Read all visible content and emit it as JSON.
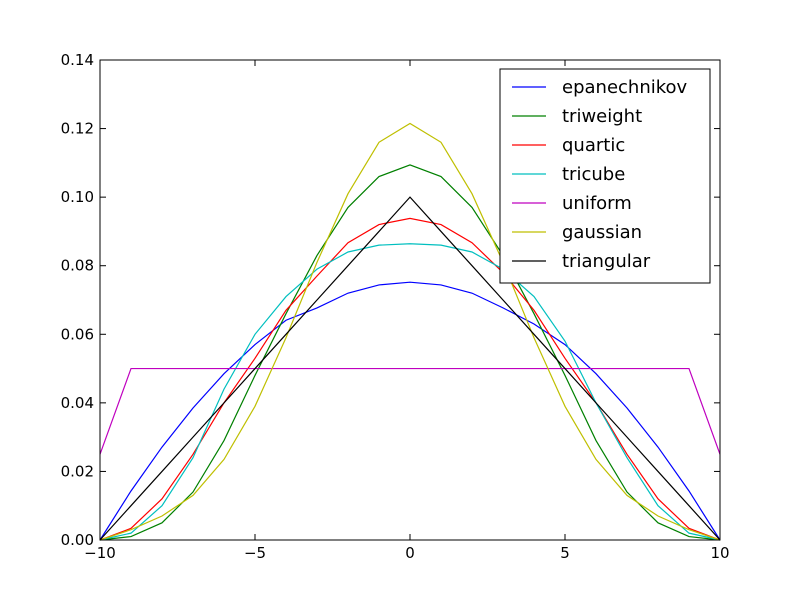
{
  "chart_data": {
    "type": "line",
    "title": "",
    "xlabel": "",
    "ylabel": "",
    "xlim": [
      -10,
      10
    ],
    "ylim": [
      0,
      0.14
    ],
    "x_ticks": [
      -10,
      -5,
      0,
      5,
      10
    ],
    "x_tick_labels": [
      "−10",
      "−5",
      "0",
      "5",
      "10"
    ],
    "y_ticks": [
      0,
      0.02,
      0.04,
      0.06,
      0.08,
      0.1,
      0.12,
      0.14
    ],
    "y_tick_labels": [
      "0.00",
      "0.02",
      "0.04",
      "0.06",
      "0.08",
      "0.10",
      "0.12",
      "0.14"
    ],
    "grid": false,
    "legend_position": "top-right",
    "x": [
      -10,
      -9,
      -8,
      -7,
      -6,
      -5,
      -4,
      -3,
      -2,
      -1,
      0,
      1,
      2,
      3,
      4,
      5,
      6,
      7,
      8,
      9,
      10
    ],
    "series": [
      {
        "name": "epanechnikov",
        "color": "#0000ff",
        "values": [
          0.0,
          0.0143,
          0.0271,
          0.0385,
          0.0485,
          0.057,
          0.0641,
          0.0677,
          0.072,
          0.0744,
          0.0752,
          0.0744,
          0.072,
          0.0677,
          0.063,
          0.057,
          0.0485,
          0.0385,
          0.0271,
          0.0143,
          0.0
        ]
      },
      {
        "name": "triweight",
        "color": "#008000",
        "values": [
          0.0,
          0.001,
          0.005,
          0.014,
          0.029,
          0.048,
          0.066,
          0.083,
          0.097,
          0.106,
          0.1094,
          0.106,
          0.097,
          0.083,
          0.066,
          0.048,
          0.029,
          0.014,
          0.005,
          0.001,
          0.0
        ]
      },
      {
        "name": "quartic",
        "color": "#ff0000",
        "values": [
          0.0,
          0.0034,
          0.012,
          0.025,
          0.04,
          0.053,
          0.067,
          0.077,
          0.0867,
          0.092,
          0.0938,
          0.092,
          0.0867,
          0.078,
          0.067,
          0.053,
          0.04,
          0.025,
          0.012,
          0.0034,
          0.0
        ]
      },
      {
        "name": "tricube",
        "color": "#00bfbf",
        "values": [
          0.0,
          0.002,
          0.01,
          0.024,
          0.044,
          0.06,
          0.071,
          0.079,
          0.084,
          0.086,
          0.0864,
          0.086,
          0.084,
          0.079,
          0.071,
          0.058,
          0.04,
          0.024,
          0.01,
          0.002,
          0.0
        ]
      },
      {
        "name": "uniform",
        "color": "#bf00bf",
        "values": [
          0.025,
          0.05,
          0.05,
          0.05,
          0.05,
          0.05,
          0.05,
          0.05,
          0.05,
          0.05,
          0.05,
          0.05,
          0.05,
          0.05,
          0.05,
          0.05,
          0.05,
          0.05,
          0.05,
          0.05,
          0.025
        ]
      },
      {
        "name": "gaussian",
        "color": "#bfbf00",
        "values": [
          0.0,
          0.003,
          0.007,
          0.013,
          0.0235,
          0.039,
          0.059,
          0.081,
          0.101,
          0.116,
          0.1215,
          0.116,
          0.101,
          0.081,
          0.059,
          0.039,
          0.0235,
          0.013,
          0.007,
          0.003,
          0.0
        ]
      },
      {
        "name": "triangular",
        "color": "#000000",
        "values": [
          0.0,
          0.01,
          0.02,
          0.03,
          0.04,
          0.05,
          0.06,
          0.07,
          0.08,
          0.09,
          0.1,
          0.09,
          0.08,
          0.07,
          0.06,
          0.05,
          0.04,
          0.03,
          0.02,
          0.01,
          0.0
        ]
      }
    ]
  }
}
